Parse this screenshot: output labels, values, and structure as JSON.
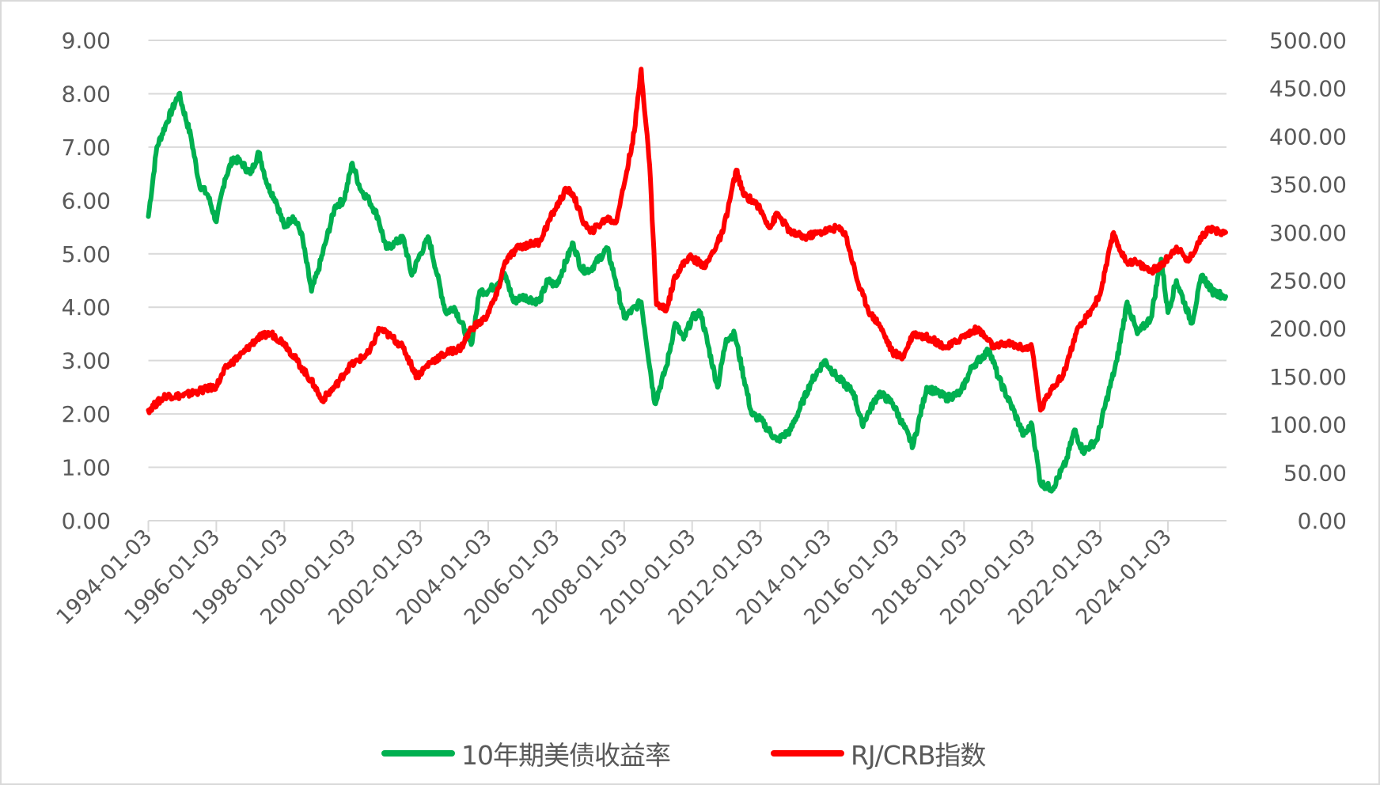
{
  "chart_data": {
    "type": "line",
    "title": "",
    "xlabel": "",
    "ylabel_left": "",
    "ylabel_right": "",
    "grid": true,
    "legend_position": "bottom",
    "x_range": [
      "1994-01-03",
      "2025-09"
    ],
    "x_tick_labels": [
      "1994-01-03",
      "1996-01-03",
      "1998-01-03",
      "2000-01-03",
      "2002-01-03",
      "2004-01-03",
      "2006-01-03",
      "2008-01-03",
      "2010-01-03",
      "2012-01-03",
      "2014-01-03",
      "2016-01-03",
      "2018-01-03",
      "2020-01-03",
      "2022-01-03",
      "2024-01-03"
    ],
    "y_left": {
      "range": [
        0,
        9
      ],
      "ticks": [
        "0.00",
        "1.00",
        "2.00",
        "3.00",
        "4.00",
        "5.00",
        "6.00",
        "7.00",
        "8.00",
        "9.00"
      ]
    },
    "y_right": {
      "range": [
        0,
        500
      ],
      "ticks": [
        "0.00",
        "50.00",
        "100.00",
        "150.00",
        "200.00",
        "250.00",
        "300.00",
        "350.00",
        "400.00",
        "450.00",
        "500.00"
      ]
    },
    "series": [
      {
        "name": "10年期美债收益率",
        "axis": "left",
        "color": "#00b050",
        "x": [
          1994.0,
          1994.25,
          1994.5,
          1994.9,
          1995.25,
          1995.5,
          1995.75,
          1996.0,
          1996.25,
          1996.5,
          1996.75,
          1997.0,
          1997.25,
          1997.5,
          1997.75,
          1998.0,
          1998.25,
          1998.5,
          1998.8,
          1999.0,
          1999.25,
          1999.5,
          1999.75,
          2000.0,
          2000.25,
          2000.5,
          2000.75,
          2001.0,
          2001.25,
          2001.5,
          2001.75,
          2002.0,
          2002.25,
          2002.5,
          2002.75,
          2003.0,
          2003.5,
          2003.75,
          2004.0,
          2004.5,
          2004.75,
          2005.0,
          2005.5,
          2005.75,
          2006.0,
          2006.5,
          2006.75,
          2007.0,
          2007.5,
          2007.75,
          2008.0,
          2008.5,
          2008.9,
          2009.25,
          2009.5,
          2009.75,
          2010.0,
          2010.25,
          2010.75,
          2011.0,
          2011.25,
          2011.75,
          2012.0,
          2012.5,
          2012.9,
          2013.5,
          2013.9,
          2014.25,
          2014.75,
          2015.0,
          2015.5,
          2015.9,
          2016.5,
          2016.9,
          2017.5,
          2017.9,
          2018.25,
          2018.75,
          2019.0,
          2019.5,
          2019.75,
          2020.0,
          2020.25,
          2020.6,
          2021.0,
          2021.25,
          2021.5,
          2021.9,
          2022.25,
          2022.5,
          2022.8,
          2023.1,
          2023.5,
          2023.8,
          2024.0,
          2024.25,
          2024.7,
          2025.0,
          2025.3,
          2025.7
        ],
        "values": [
          5.7,
          7.0,
          7.4,
          8.0,
          7.2,
          6.3,
          6.1,
          5.6,
          6.4,
          6.8,
          6.7,
          6.5,
          6.9,
          6.3,
          6.0,
          5.5,
          5.7,
          5.4,
          4.3,
          4.7,
          5.3,
          5.9,
          6.0,
          6.7,
          6.2,
          6.0,
          5.7,
          5.1,
          5.2,
          5.3,
          4.6,
          5.0,
          5.3,
          4.6,
          3.9,
          4.0,
          3.3,
          4.3,
          4.3,
          4.6,
          4.1,
          4.2,
          4.1,
          4.5,
          4.4,
          5.2,
          4.7,
          4.7,
          5.1,
          4.5,
          3.8,
          4.1,
          2.2,
          2.9,
          3.7,
          3.4,
          3.8,
          3.9,
          2.5,
          3.4,
          3.5,
          2.0,
          1.9,
          1.5,
          1.7,
          2.6,
          3.0,
          2.7,
          2.4,
          1.8,
          2.4,
          2.2,
          1.4,
          2.5,
          2.3,
          2.4,
          2.9,
          3.2,
          2.7,
          2.0,
          1.6,
          1.8,
          0.7,
          0.6,
          1.1,
          1.7,
          1.3,
          1.5,
          2.4,
          3.0,
          4.1,
          3.5,
          3.8,
          4.9,
          3.9,
          4.5,
          3.7,
          4.6,
          4.3,
          4.2
        ]
      },
      {
        "name": "RJ/CRB指数",
        "axis": "right",
        "color": "#ff0000",
        "x": [
          1994.0,
          1994.5,
          1995.0,
          1995.5,
          1996.0,
          1996.3,
          1996.8,
          1997.2,
          1997.6,
          1998.0,
          1998.5,
          1998.9,
          1999.1,
          1999.5,
          1999.9,
          2000.5,
          2000.8,
          2001.2,
          2001.5,
          2001.9,
          2002.3,
          2002.8,
          2003.2,
          2003.5,
          2003.9,
          2004.25,
          2004.5,
          2004.9,
          2005.5,
          2005.9,
          2006.3,
          2006.5,
          2006.75,
          2007.0,
          2007.5,
          2007.75,
          2008.0,
          2008.3,
          2008.5,
          2008.75,
          2008.95,
          2009.25,
          2009.5,
          2009.9,
          2010.4,
          2010.9,
          2011.3,
          2011.5,
          2011.9,
          2012.3,
          2012.5,
          2012.9,
          2013.3,
          2013.75,
          2014.25,
          2014.5,
          2014.9,
          2015.25,
          2015.5,
          2015.9,
          2016.2,
          2016.5,
          2017.0,
          2017.5,
          2017.9,
          2018.4,
          2018.9,
          2019.25,
          2019.75,
          2020.0,
          2020.25,
          2020.6,
          2020.9,
          2021.3,
          2021.75,
          2022.0,
          2022.4,
          2022.5,
          2022.75,
          2023.0,
          2023.5,
          2023.8,
          2024.25,
          2024.6,
          2024.9,
          2025.2,
          2025.5,
          2025.7
        ],
        "values": [
          115,
          130,
          130,
          135,
          140,
          160,
          175,
          190,
          195,
          185,
          160,
          140,
          125,
          140,
          160,
          175,
          200,
          190,
          180,
          150,
          165,
          175,
          180,
          200,
          210,
          235,
          270,
          285,
          290,
          320,
          345,
          340,
          315,
          300,
          315,
          310,
          350,
          405,
          470,
          370,
          225,
          220,
          255,
          275,
          265,
          300,
          365,
          340,
          330,
          305,
          320,
          300,
          295,
          300,
          305,
          300,
          245,
          215,
          205,
          175,
          170,
          195,
          190,
          180,
          190,
          200,
          180,
          185,
          180,
          180,
          115,
          140,
          150,
          195,
          220,
          235,
          300,
          290,
          270,
          270,
          260,
          265,
          285,
          270,
          290,
          305,
          300,
          300
        ]
      }
    ]
  },
  "legend": {
    "items": [
      {
        "label": "10年期美债收益率",
        "color": "#00b050"
      },
      {
        "label": "RJ/CRB指数",
        "color": "#ff0000"
      }
    ]
  }
}
